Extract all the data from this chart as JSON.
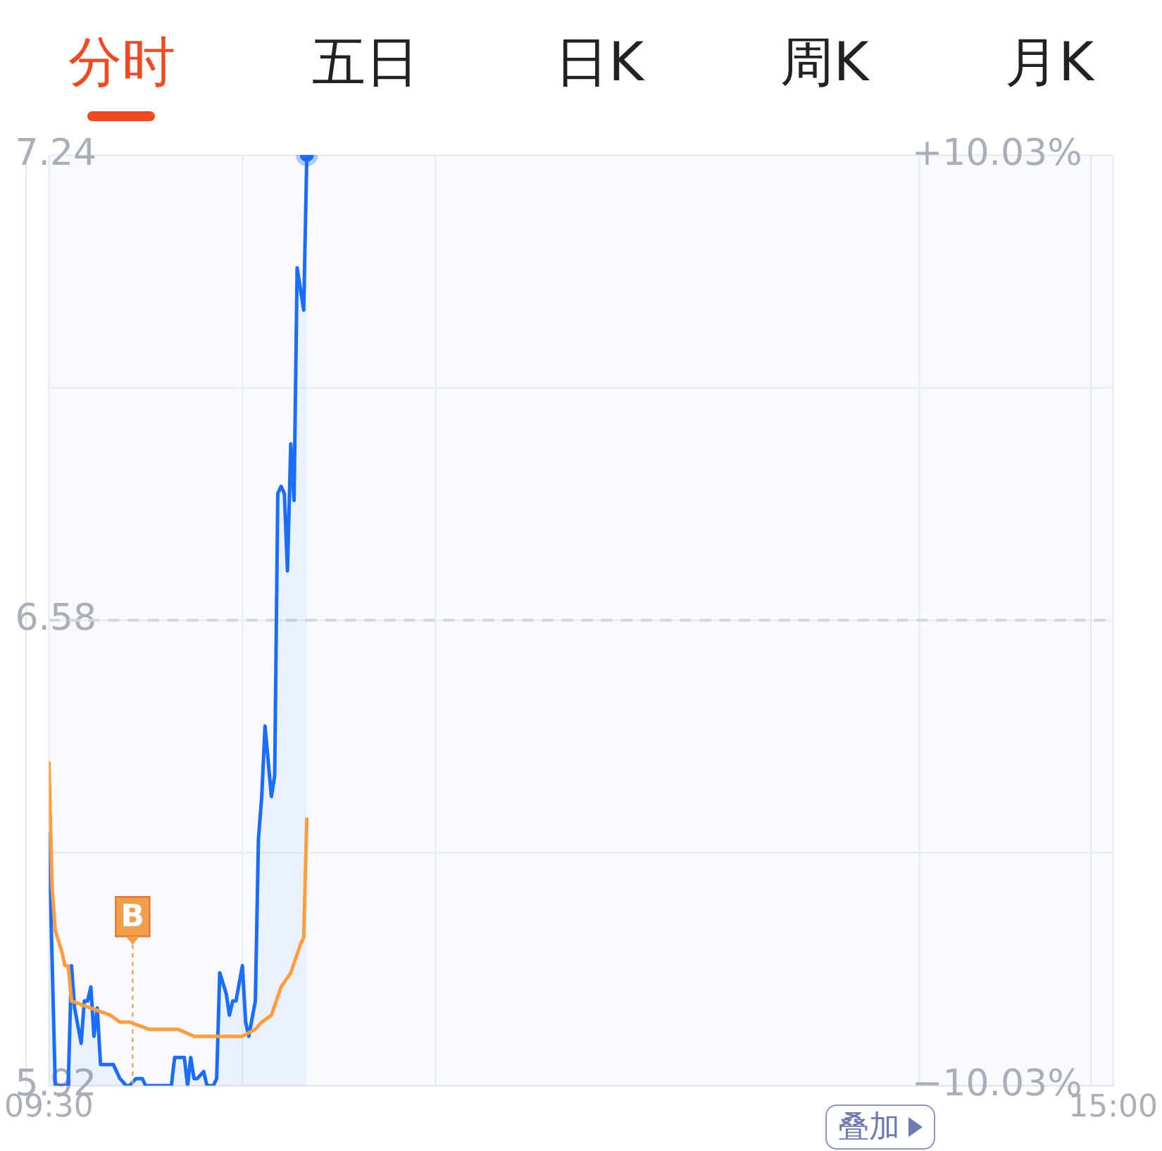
{
  "chart_data": {
    "type": "line",
    "series": [
      {
        "type": "area",
        "color": "#1a6dff",
        "x": [
          9.5,
          9.533,
          9.6,
          9.617,
          9.633,
          9.667,
          9.683,
          9.7,
          9.717,
          9.733,
          9.75,
          9.767,
          9.8,
          9.833,
          9.867,
          9.9,
          9.917,
          9.95,
          9.983,
          10,
          10.133,
          10.15,
          10.183,
          10.2,
          10.217,
          10.233,
          10.25,
          10.267,
          10.3,
          10.317,
          10.35,
          10.367,
          10.383,
          10.417,
          10.433,
          10.45,
          10.467,
          10.5,
          10.517,
          10.533,
          10.567,
          10.583,
          10.6,
          10.617,
          10.65,
          10.667,
          10.683,
          10.7,
          10.717,
          10.733,
          10.75,
          10.767,
          10.783,
          10.817,
          10.833
        ],
        "values": [
          6.28,
          5.92,
          5.92,
          6.09,
          6.03,
          5.98,
          6.04,
          6.04,
          6.06,
          5.99,
          6.03,
          5.95,
          5.95,
          5.95,
          5.93,
          5.92,
          5.92,
          5.93,
          5.93,
          5.92,
          5.92,
          5.96,
          5.96,
          5.96,
          5.92,
          5.96,
          5.93,
          5.93,
          5.94,
          5.92,
          5.92,
          5.93,
          6.08,
          6.05,
          6.02,
          6.04,
          6.04,
          6.09,
          6.01,
          5.99,
          6.04,
          6.27,
          6.33,
          6.43,
          6.33,
          6.36,
          6.76,
          6.77,
          6.76,
          6.65,
          6.83,
          6.75,
          7.08,
          7.02,
          7.24
        ]
      },
      {
        "type": "line",
        "color": "#ff9d3f",
        "x": [
          9.5,
          9.517,
          9.533,
          9.567,
          9.583,
          9.6,
          9.617,
          9.717,
          9.817,
          9.867,
          9.917,
          10.017,
          10.117,
          10.167,
          10.25,
          10.317,
          10.417,
          10.5,
          10.567,
          10.6,
          10.65,
          10.7,
          10.75,
          10.8,
          10.817,
          10.833
        ],
        "values": [
          6.38,
          6.2,
          6.14,
          6.11,
          6.09,
          6.09,
          6.04,
          6.03,
          6.02,
          6.01,
          6.01,
          6.0,
          6.0,
          6.0,
          5.99,
          5.99,
          5.99,
          5.99,
          6.0,
          6.01,
          6.02,
          6.06,
          6.08,
          6.12,
          6.13,
          6.3
        ]
      }
    ],
    "xlim": [
      9.5,
      15
    ],
    "xticks": [
      {
        "value": 9.5,
        "label": "09:30"
      },
      {
        "value": 10.5,
        "label": null
      },
      {
        "value": 11.5,
        "label": null
      },
      {
        "value": 14,
        "label": null
      },
      {
        "value": 15,
        "label": "15:00"
      }
    ],
    "ylim": [
      5.92,
      7.24
    ],
    "yticks": [
      5.92,
      {
        "value": 6.25,
        "label": null
      },
      6.58,
      {
        "value": 6.91,
        "label": null
      },
      7.24
    ],
    "y2lim": [
      -10.03,
      10.03
    ],
    "y2ticks": [
      {
        "value": -10.03,
        "label": "−10.03%"
      },
      {
        "value": 10.03,
        "label": "+10.03%"
      }
    ],
    "ref_lines": [
      {
        "axis": "y",
        "value": 6.58,
        "color": "#d3d6dc",
        "line_style": "dashed"
      }
    ],
    "annotations": [
      "分时",
      "五日",
      "日K",
      "周K",
      "月K",
      "叠加",
      {
        "text": "B",
        "x": 9.933,
        "y": 5.92
      }
    ],
    "grid": true,
    "legend": false,
    "marker": "none"
  }
}
